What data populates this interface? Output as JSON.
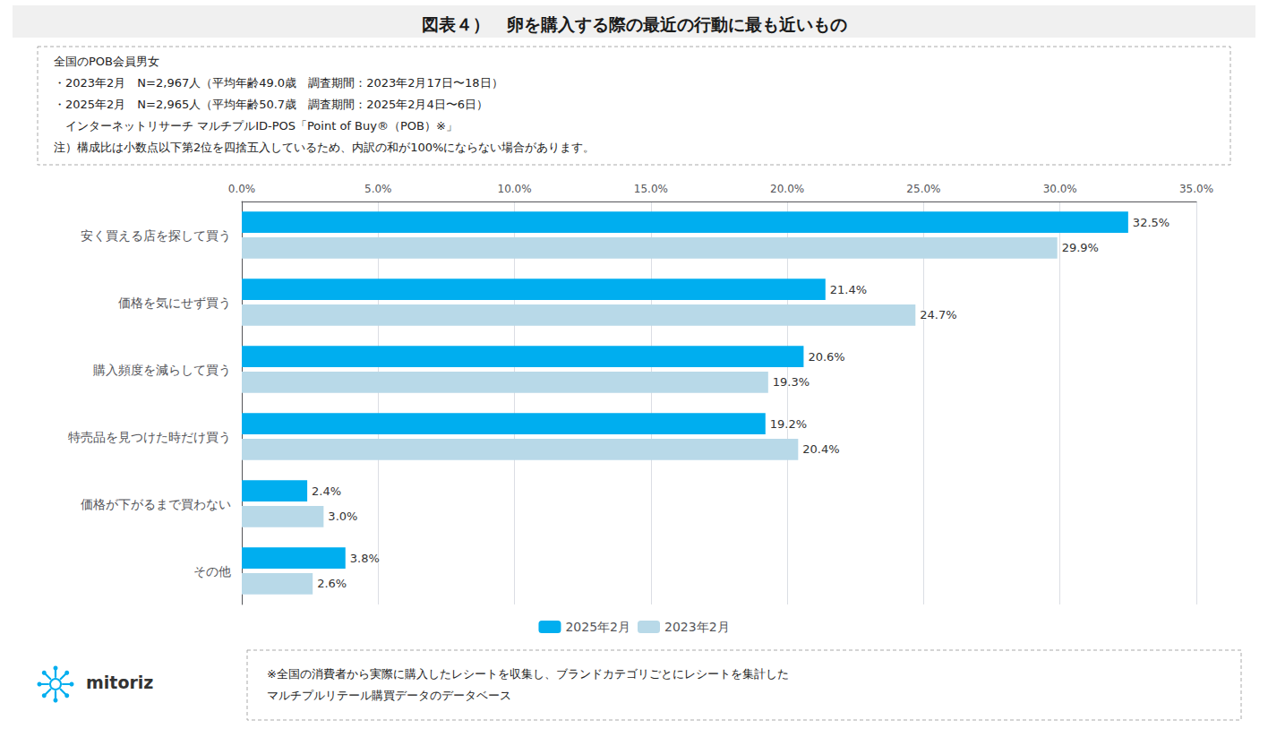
{
  "chart_data": {
    "type": "bar",
    "orientation": "horizontal",
    "title": "図表４）　卵を購入する際の最近の行動に最も近いもの",
    "categories": [
      "安く買える店を探して買う",
      "価格を気にせず買う",
      "購入頻度を減らして買う",
      "特売品を見つけた時だけ買う",
      "価格が下がるまで買わない",
      "その他"
    ],
    "series": [
      {
        "name": "2025年2月",
        "color": "#00AEEF",
        "values": [
          32.5,
          21.4,
          20.6,
          19.2,
          2.4,
          3.8
        ],
        "value_labels": [
          "32.5%",
          "21.4%",
          "20.6%",
          "19.2%",
          "2.4%",
          "3.8%"
        ]
      },
      {
        "name": "2023年2月",
        "color": "#B8D9E8",
        "values": [
          29.9,
          24.7,
          19.3,
          20.4,
          3.0,
          2.6
        ],
        "value_labels": [
          "29.9%",
          "24.7%",
          "19.3%",
          "20.4%",
          "3.0%",
          "2.6%"
        ]
      }
    ],
    "xlim": [
      0,
      35
    ],
    "xticks": [
      {
        "value": 0,
        "label": "0.0%"
      },
      {
        "value": 5,
        "label": "5.0%"
      },
      {
        "value": 10,
        "label": "10.0%"
      },
      {
        "value": 15,
        "label": "15.0%"
      },
      {
        "value": 20,
        "label": "20.0%"
      },
      {
        "value": 25,
        "label": "25.0%"
      },
      {
        "value": 30,
        "label": "30.0%"
      },
      {
        "value": 35,
        "label": "35.0%"
      }
    ],
    "grid": true,
    "legend": "bottom",
    "data_labels": true,
    "annotations": [
      "全国のPOB会員男女",
      "・2023年2月　N=2,967人（平均年齢49.0歳　調査期間：2023年2月17日〜18日）",
      "・2025年2月　N=2,965人（平均年齢50.7歳　調査期間：2025年2月4日〜6日）",
      "　インターネットリサーチ マルチプルID-POS「Point of Buy®（POB）※」",
      "注）構成比は小数点以下第2位を四捨五入しているため、内訳の和が100%にならない場合があります。",
      "※全国の消費者から実際に購入したレシートを収集し、ブランドカテゴリごとにレシートを集計した\nマルチプルリテール購買データのデータベース",
      "mitoriz"
    ]
  }
}
